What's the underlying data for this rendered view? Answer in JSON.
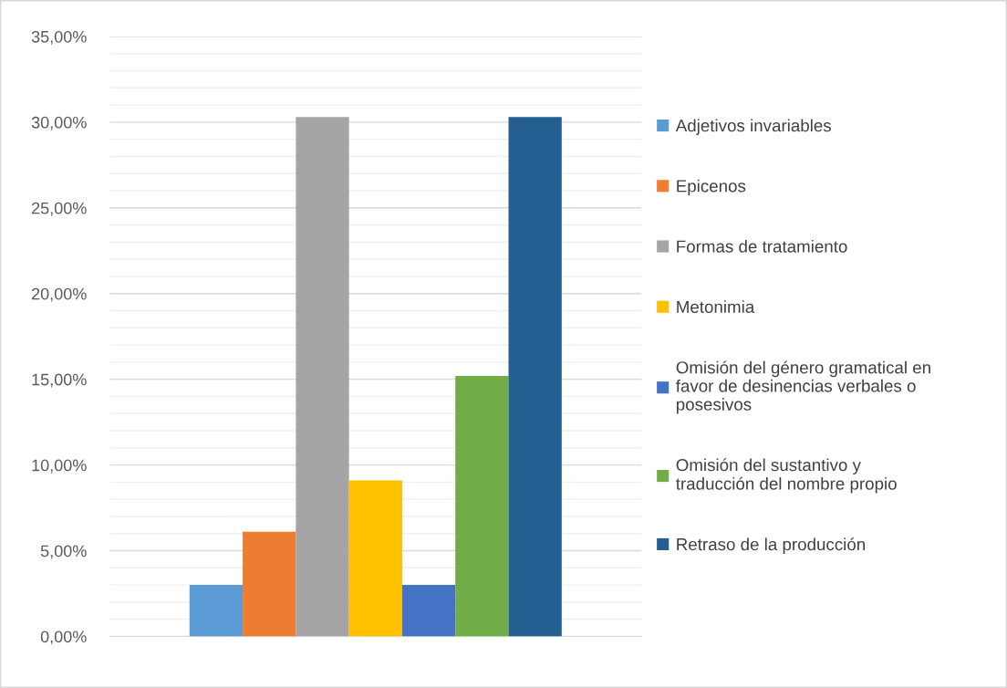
{
  "chart_data": {
    "type": "bar",
    "categories": [
      null
    ],
    "series": [
      {
        "name": "Adjetivos invariables",
        "color": "#5b9bd5",
        "values": [
          3.0
        ]
      },
      {
        "name": "Epicenos",
        "color": "#ed7d31",
        "values": [
          6.1
        ]
      },
      {
        "name": "Formas de tratamiento",
        "color": "#a5a5a5",
        "values": [
          30.3
        ]
      },
      {
        "name": "Metonimia",
        "color": "#ffc000",
        "values": [
          9.1
        ]
      },
      {
        "name": "Omisión del género gramatical en favor de desinencias verbales o posesivos",
        "color": "#4472c4",
        "values": [
          3.0
        ]
      },
      {
        "name": "Omisión del sustantivo y traducción del nombre propio",
        "color": "#70ad47",
        "values": [
          15.2
        ]
      },
      {
        "name": "Retraso de la producción",
        "color": "#255e91",
        "values": [
          30.3
        ]
      }
    ],
    "ylim": [
      0,
      35
    ],
    "yticks": [
      {
        "value": 0,
        "label": "0,00%"
      },
      {
        "value": 1,
        "label": null
      },
      {
        "value": 2,
        "label": null
      },
      {
        "value": 3,
        "label": null
      },
      {
        "value": 4,
        "label": null
      },
      {
        "value": 5,
        "label": "5,00%"
      },
      {
        "value": 6,
        "label": null
      },
      {
        "value": 7,
        "label": null
      },
      {
        "value": 8,
        "label": null
      },
      {
        "value": 9,
        "label": null
      },
      {
        "value": 10,
        "label": "10,00%"
      },
      {
        "value": 11,
        "label": null
      },
      {
        "value": 12,
        "label": null
      },
      {
        "value": 13,
        "label": null
      },
      {
        "value": 14,
        "label": null
      },
      {
        "value": 15,
        "label": "15,00%"
      },
      {
        "value": 16,
        "label": null
      },
      {
        "value": 17,
        "label": null
      },
      {
        "value": 18,
        "label": null
      },
      {
        "value": 19,
        "label": null
      },
      {
        "value": 20,
        "label": "20,00%"
      },
      {
        "value": 21,
        "label": null
      },
      {
        "value": 22,
        "label": null
      },
      {
        "value": 23,
        "label": null
      },
      {
        "value": 24,
        "label": null
      },
      {
        "value": 25,
        "label": "25,00%"
      },
      {
        "value": 26,
        "label": null
      },
      {
        "value": 27,
        "label": null
      },
      {
        "value": 28,
        "label": null
      },
      {
        "value": 29,
        "label": null
      },
      {
        "value": 30,
        "label": "30,00%"
      },
      {
        "value": 31,
        "label": null
      },
      {
        "value": 32,
        "label": null
      },
      {
        "value": 33,
        "label": null
      },
      {
        "value": 34,
        "label": null
      },
      {
        "value": 35,
        "label": "35,00%"
      }
    ],
    "grid": "y",
    "legend": "right"
  }
}
